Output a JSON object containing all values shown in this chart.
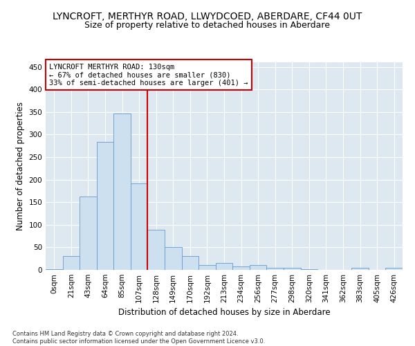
{
  "title": "LYNCROFT, MERTHYR ROAD, LLWYDCOED, ABERDARE, CF44 0UT",
  "subtitle": "Size of property relative to detached houses in Aberdare",
  "xlabel": "Distribution of detached houses by size in Aberdare",
  "ylabel": "Number of detached properties",
  "footnote": "Contains HM Land Registry data © Crown copyright and database right 2024.\nContains public sector information licensed under the Open Government Licence v3.0.",
  "bar_labels": [
    "0sqm",
    "21sqm",
    "43sqm",
    "64sqm",
    "85sqm",
    "107sqm",
    "128sqm",
    "149sqm",
    "170sqm",
    "192sqm",
    "213sqm",
    "234sqm",
    "256sqm",
    "277sqm",
    "298sqm",
    "320sqm",
    "341sqm",
    "362sqm",
    "383sqm",
    "405sqm",
    "426sqm"
  ],
  "bar_values": [
    2,
    30,
    162,
    284,
    347,
    192,
    89,
    50,
    30,
    10,
    16,
    8,
    10,
    4,
    5,
    1,
    0,
    0,
    5,
    0,
    5
  ],
  "bar_color": "#cce0f0",
  "bar_edge_color": "#6699cc",
  "vline_color": "#cc0000",
  "annotation_title": "LYNCROFT MERTHYR ROAD: 130sqm",
  "annotation_line1": "← 67% of detached houses are smaller (830)",
  "annotation_line2": "33% of semi-detached houses are larger (401) →",
  "annotation_box_color": "#cc0000",
  "ylim": [
    0,
    460
  ],
  "yticks": [
    0,
    50,
    100,
    150,
    200,
    250,
    300,
    350,
    400,
    450
  ],
  "plot_bg_color": "#dde8f0",
  "title_fontsize": 10,
  "subtitle_fontsize": 9,
  "axis_label_fontsize": 8.5,
  "tick_fontsize": 7.5,
  "annotation_fontsize": 7.5,
  "footnote_fontsize": 6
}
